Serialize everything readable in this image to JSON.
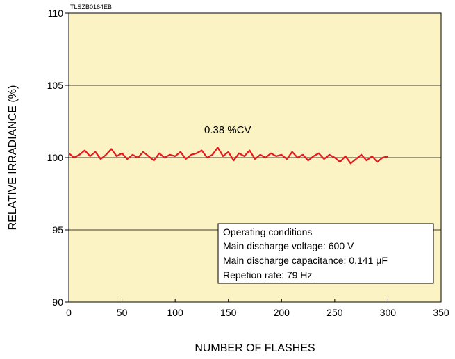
{
  "chart_data": {
    "type": "line",
    "code": "TLSZB0164EB",
    "annotation": "0.38 %CV",
    "xlabel": "NUMBER OF FLASHES",
    "ylabel": "RELATIVE IRRADIANCE (%)",
    "xlim": [
      0,
      350
    ],
    "ylim": [
      90,
      110
    ],
    "x_ticks": [
      "0",
      "50",
      "100",
      "150",
      "200",
      "250",
      "300",
      "350"
    ],
    "y_ticks": [
      "90",
      "95",
      "100",
      "105",
      "110"
    ],
    "grid": "horizontal",
    "legend_box": {
      "lines": [
        "Operating conditions",
        "Main discharge voltage: 600 V",
        "Main discharge capacitance: 0.141 μF",
        "Repetion rate: 79 Hz"
      ],
      "placement": "bottom-right"
    },
    "colors": {
      "plot_bg": "#fbf3c4",
      "series": "#e6191e",
      "axis": "#000000"
    },
    "series": [
      {
        "x": [
          0,
          5,
          10,
          15,
          20,
          25,
          30,
          35,
          40,
          45,
          50,
          55,
          60,
          65,
          70,
          75,
          80,
          85,
          90,
          95,
          100,
          105,
          110,
          115,
          120,
          125,
          130,
          135,
          140,
          145,
          150,
          155,
          160,
          165,
          170,
          175,
          180,
          185,
          190,
          195,
          200,
          205,
          210,
          215,
          220,
          225,
          230,
          235,
          240,
          245,
          250,
          255,
          260,
          265,
          270,
          275,
          280,
          285,
          290,
          295,
          300
        ],
        "values": [
          100.3,
          100.0,
          100.2,
          100.5,
          100.1,
          100.4,
          99.9,
          100.2,
          100.6,
          100.1,
          100.3,
          99.9,
          100.2,
          100.0,
          100.4,
          100.1,
          99.8,
          100.3,
          100.0,
          100.2,
          100.1,
          100.4,
          99.9,
          100.2,
          100.3,
          100.5,
          100.0,
          100.2,
          100.7,
          100.1,
          100.4,
          99.8,
          100.3,
          100.1,
          100.5,
          99.9,
          100.2,
          100.0,
          100.3,
          100.1,
          100.2,
          99.9,
          100.4,
          100.0,
          100.2,
          99.8,
          100.1,
          100.3,
          99.9,
          100.2,
          100.0,
          99.7,
          100.1,
          99.6,
          99.9,
          100.2,
          99.8,
          100.1,
          99.7,
          100.0,
          100.1
        ]
      }
    ]
  }
}
